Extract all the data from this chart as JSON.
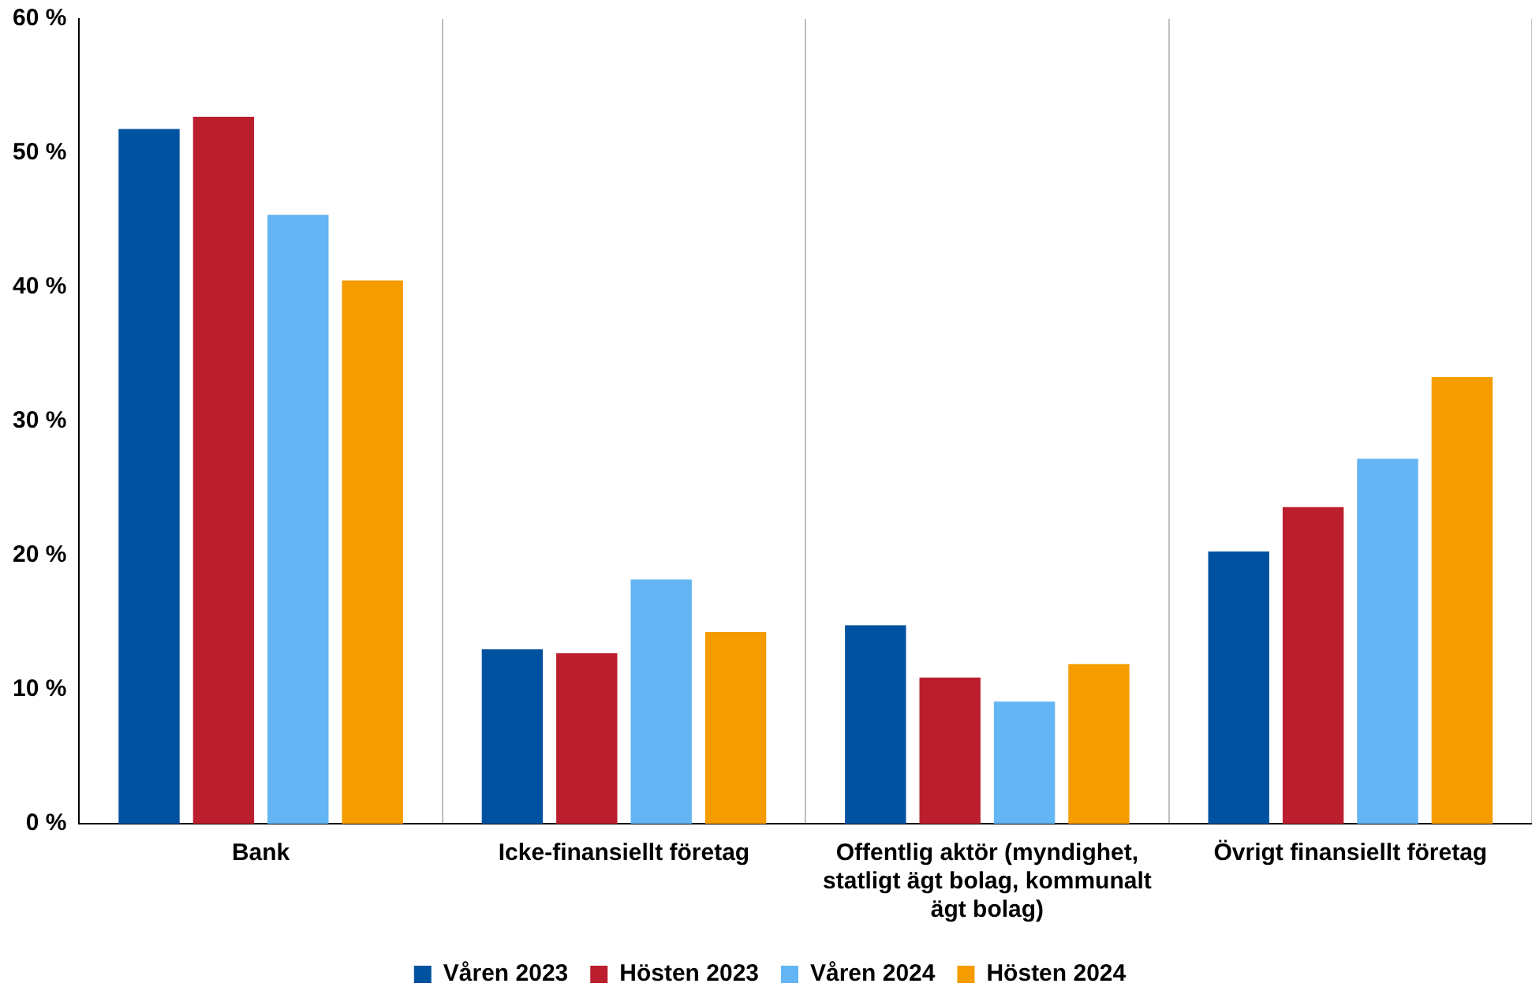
{
  "chart_data": {
    "type": "bar",
    "categories": [
      "Bank",
      "Icke-finansiellt företag",
      "Offentlig aktör (myndighet, statligt ägt bolag, kommunalt ägt bolag)",
      "Övrigt finansiellt företag"
    ],
    "series": [
      {
        "name": "Våren 2023",
        "color": "#0052a0",
        "values": [
          51.8,
          13.0,
          14.8,
          20.3
        ]
      },
      {
        "name": "Hösten 2023",
        "color": "#bb1f2e",
        "values": [
          52.7,
          12.7,
          10.9,
          23.6
        ]
      },
      {
        "name": "Våren 2024",
        "color": "#63b5f3",
        "values": [
          45.4,
          18.2,
          9.1,
          27.2
        ]
      },
      {
        "name": "Hösten 2024",
        "color": "#f59c00",
        "values": [
          40.5,
          14.3,
          11.9,
          33.3
        ]
      }
    ],
    "ylim": [
      0,
      60
    ],
    "yticks": [
      {
        "value": 0,
        "label": "0 %"
      },
      {
        "value": 10,
        "label": "10 %"
      },
      {
        "value": 20,
        "label": "20 %"
      },
      {
        "value": 30,
        "label": "30 %"
      },
      {
        "value": 40,
        "label": "40 %"
      },
      {
        "value": 50,
        "label": "50 %"
      },
      {
        "value": 60,
        "label": "60 %"
      }
    ],
    "grid": "x",
    "legend": "bottom"
  }
}
